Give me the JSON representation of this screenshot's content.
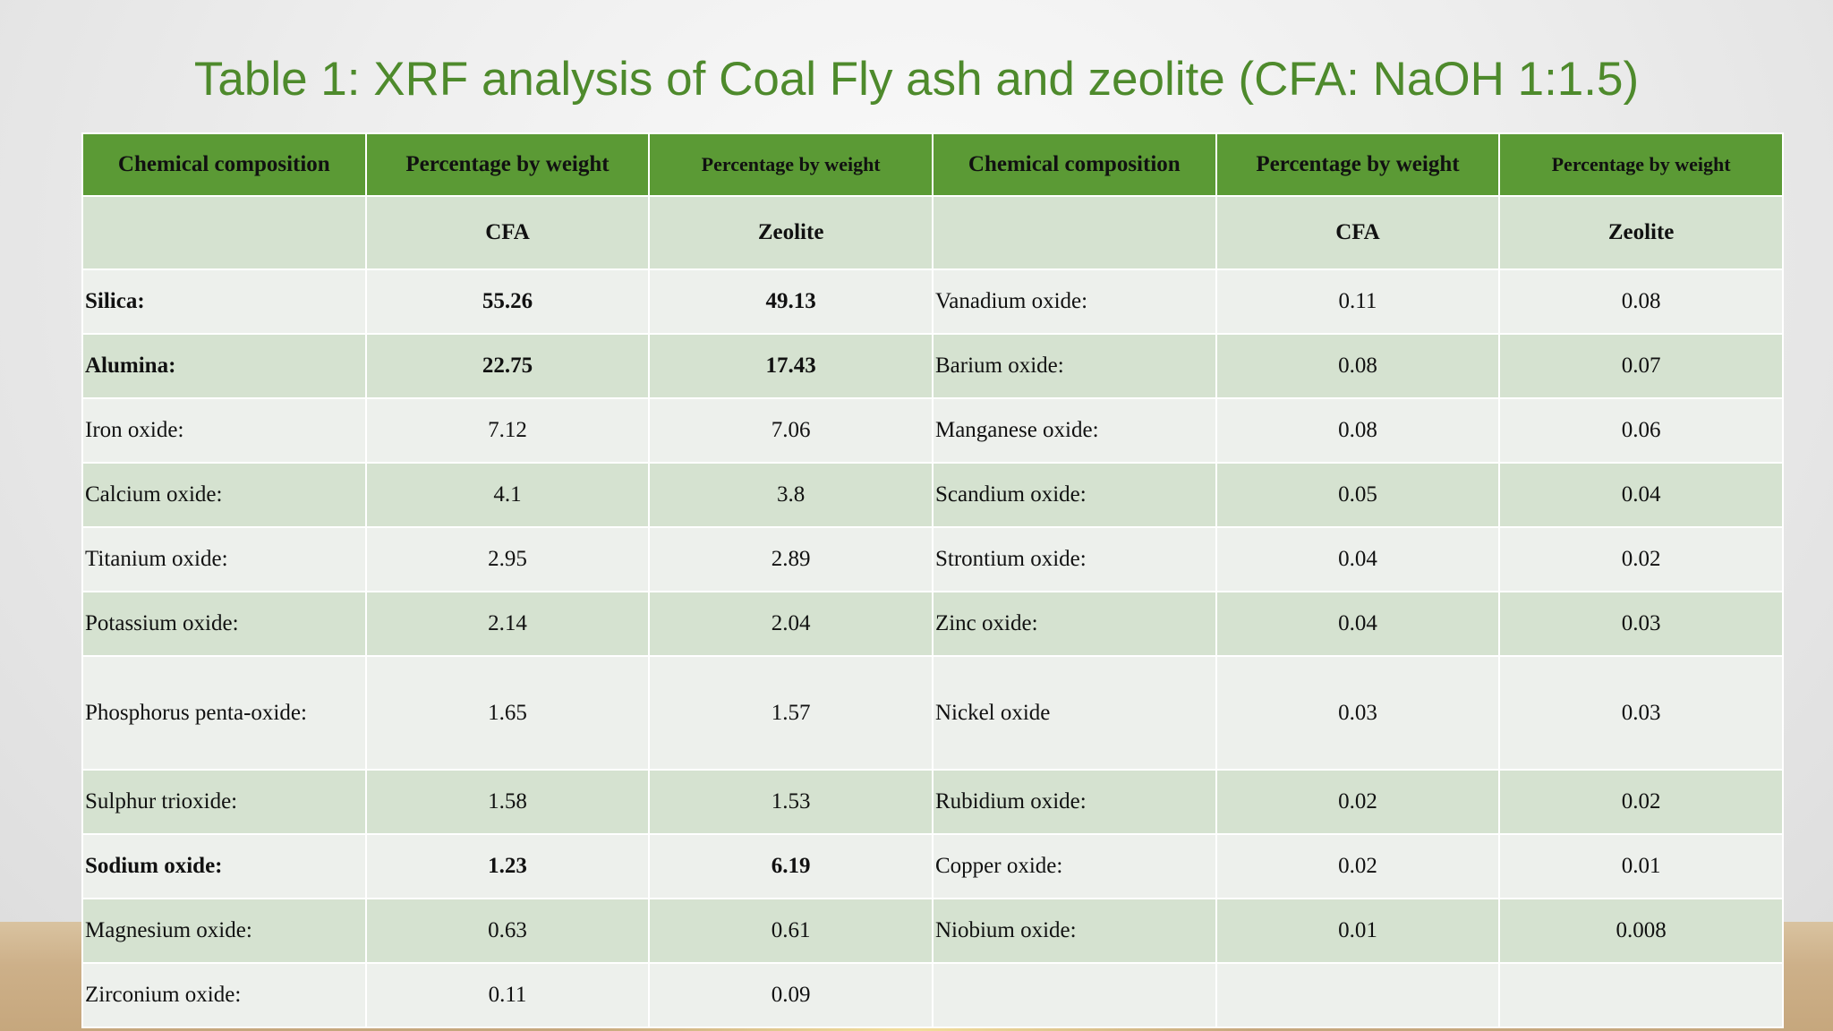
{
  "title": "Table 1: XRF analysis of Coal Fly ash and zeolite (CFA: NaOH 1:1.5)",
  "headers": [
    "Chemical composition",
    "Percentage by weight",
    "Percentage by weight",
    "Chemical composition",
    "Percentage by weight",
    "Percentage by weight"
  ],
  "subheaders": [
    "",
    "CFA",
    "Zeolite",
    "",
    "CFA",
    "Zeolite"
  ],
  "rows": [
    {
      "c1": "Silica:",
      "v1": "55.26",
      "v2": "49.13",
      "c2": "Vanadium oxide:",
      "v3": "0.11",
      "v4": "0.08"
    },
    {
      "c1": "Alumina:",
      "v1": "22.75",
      "v2": "17.43",
      "c2": "Barium oxide:",
      "v3": "0.08",
      "v4": "0.07"
    },
    {
      "c1": "Iron oxide:",
      "v1": "7.12",
      "v2": "7.06",
      "c2": "Manganese oxide:",
      "v3": "0.08",
      "v4": "0.06"
    },
    {
      "c1": "Calcium oxide:",
      "v1": "4.1",
      "v2": "3.8",
      "c2": "Scandium oxide:",
      "v3": "0.05",
      "v4": "0.04"
    },
    {
      "c1": "Titanium oxide:",
      "v1": "2.95",
      "v2": "2.89",
      "c2": "Strontium oxide:",
      "v3": "0.04",
      "v4": "0.02"
    },
    {
      "c1": "Potassium oxide:",
      "v1": "2.14",
      "v2": "2.04",
      "c2": "Zinc oxide:",
      "v3": "0.04",
      "v4": "0.03"
    },
    {
      "c1": "Phosphorus penta-oxide:",
      "v1": "1.65",
      "v2": "1.57",
      "c2": "Nickel oxide",
      "v3": "0.03",
      "v4": "0.03"
    },
    {
      "c1": "Sulphur trioxide:",
      "v1": "1.58",
      "v2": "1.53",
      "c2": "Rubidium oxide:",
      "v3": "0.02",
      "v4": "0.02"
    },
    {
      "c1": "Sodium oxide:",
      "v1": "1.23",
      "v2": "6.19",
      "c2": "Copper oxide:",
      "v3": "0.02",
      "v4": "0.01"
    },
    {
      "c1": "Magnesium oxide:",
      "v1": "0.63",
      "v2": "0.61",
      "c2": "Niobium oxide:",
      "v3": "0.01",
      "v4": "0.008"
    },
    {
      "c1": "Zirconium oxide:",
      "v1": "0.11",
      "v2": "0.09",
      "c2": "",
      "v3": "",
      "v4": ""
    }
  ]
}
